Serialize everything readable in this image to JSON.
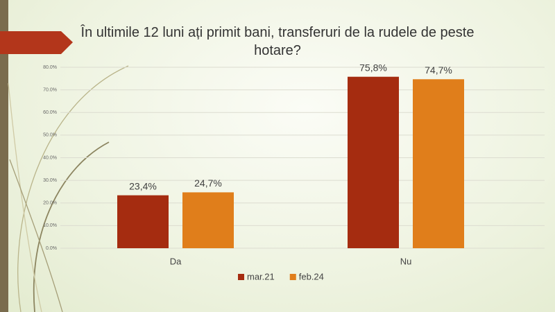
{
  "chart_data": {
    "type": "bar",
    "title": "În ultimile 12 luni ați primit bani, transferuri de la rudele de peste hotare?",
    "categories": [
      "Da",
      "Nu"
    ],
    "series": [
      {
        "name": "mar.21",
        "color": "#a52c10",
        "values": [
          23.4,
          75.8
        ],
        "value_labels": [
          "23,4%",
          "75,8%"
        ]
      },
      {
        "name": "feb.24",
        "color": "#e07e1b",
        "values": [
          24.7,
          74.7
        ],
        "value_labels": [
          "24,7%",
          "74,7%"
        ]
      }
    ],
    "ylim": [
      0,
      80
    ],
    "yticks": [
      {
        "value": 0,
        "label": "0.0%"
      },
      {
        "value": 10,
        "label": "10.0%"
      },
      {
        "value": 20,
        "label": "20.0%"
      },
      {
        "value": 30,
        "label": "30.0%"
      },
      {
        "value": 40,
        "label": "40.0%"
      },
      {
        "value": 50,
        "label": "50.0%"
      },
      {
        "value": 60,
        "label": "60.0%"
      },
      {
        "value": 70,
        "label": "70.0%"
      },
      {
        "value": 80,
        "label": "80.0%"
      }
    ],
    "grid": true,
    "legend": "bottom"
  }
}
